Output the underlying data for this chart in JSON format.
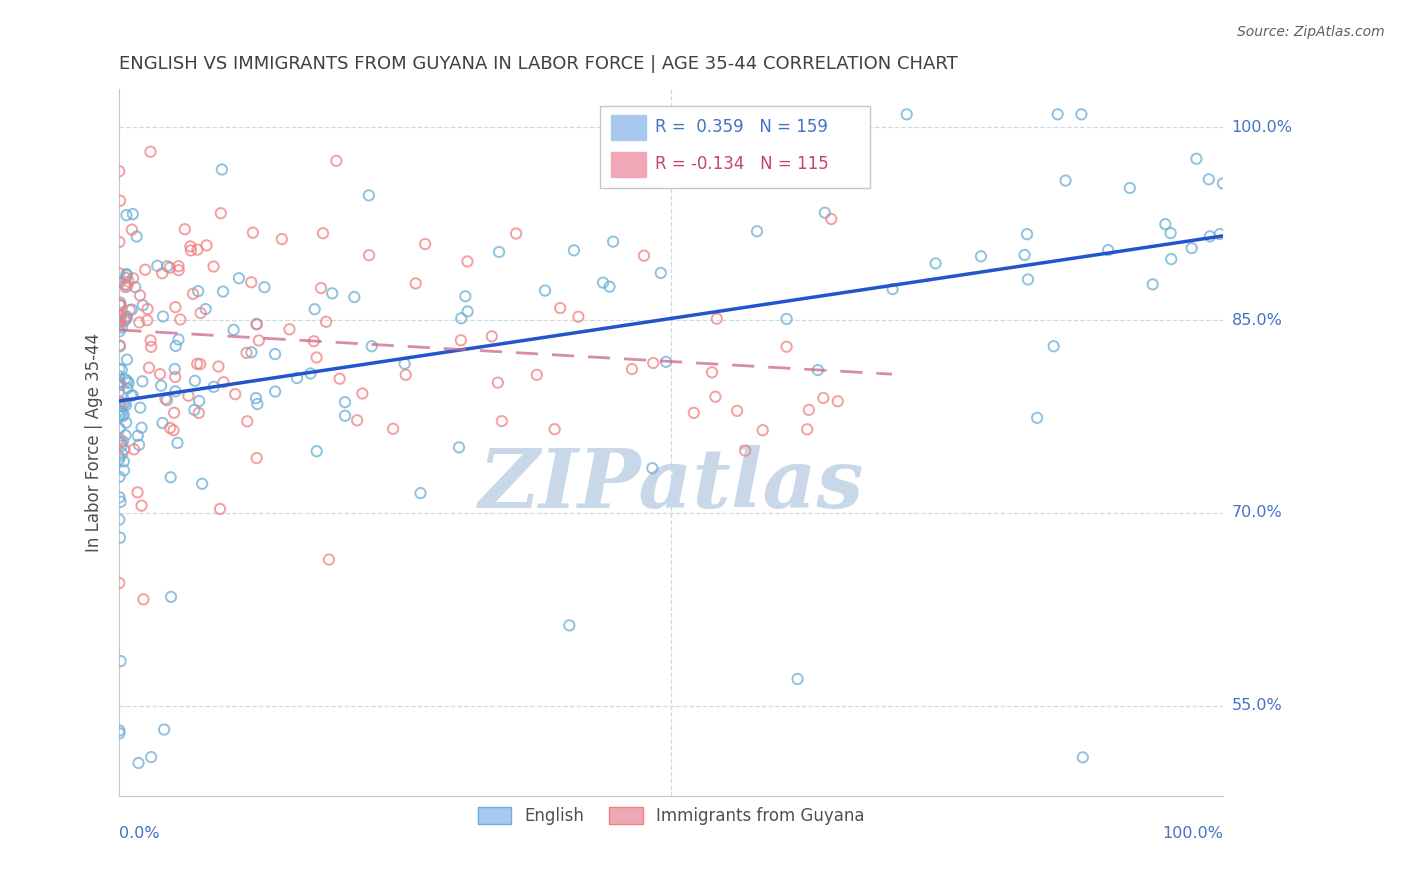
{
  "title": "ENGLISH VS IMMIGRANTS FROM GUYANA IN LABOR FORCE | AGE 35-44 CORRELATION CHART",
  "source": "Source: ZipAtlas.com",
  "ylabel": "In Labor Force | Age 35-44",
  "xlim": [
    0.0,
    1.0
  ],
  "ylim": [
    0.48,
    1.03
  ],
  "yticks": [
    0.55,
    0.7,
    0.85,
    1.0
  ],
  "ytick_labels": [
    "55.0%",
    "70.0%",
    "85.0%",
    "100.0%"
  ],
  "english_edge_color": "#6baed6",
  "english_face_color": "#aed4f0",
  "guyana_edge_color": "#f08080",
  "guyana_face_color": "#f0b0b8",
  "english_line_color": "#2255cc",
  "guyana_line_color": "#cc6688",
  "legend_box_eng": "#a8c8f0",
  "legend_box_guy": "#f0a8b8",
  "legend_text_color": "#4472c4",
  "legend_text_color2": "#c44472",
  "watermark": "ZIPatlas",
  "watermark_color": "#c8d8e8",
  "background_color": "#ffffff",
  "grid_color": "#d0d8e0",
  "title_color": "#404040",
  "axis_label_color": "#4472c4",
  "english_R": 0.359,
  "english_N": 159,
  "guyana_R": -0.134,
  "guyana_N": 115
}
